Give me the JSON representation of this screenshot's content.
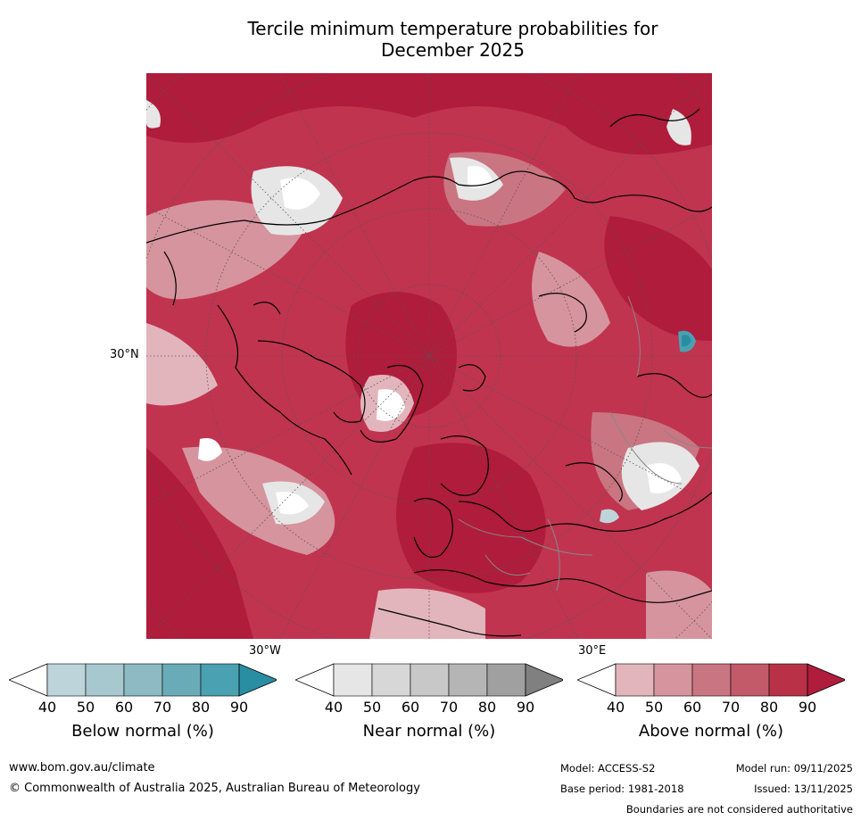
{
  "title": {
    "line1": "Tercile minimum temperature probabilities for",
    "line2": "December 2025"
  },
  "map": {
    "lat_label": "30°N",
    "lon_label_left": "30°W",
    "lon_label_right": "30°E"
  },
  "colorbars": [
    {
      "label": "Below normal (%)",
      "ticks": [
        "40",
        "50",
        "60",
        "70",
        "80",
        "90"
      ],
      "colors": [
        "#ffffff",
        "#bdd5da",
        "#a6c8ce",
        "#8dbac3",
        "#6aabb8",
        "#4aa1b1",
        "#2a8ea3"
      ]
    },
    {
      "label": "Near normal (%)",
      "ticks": [
        "40",
        "50",
        "60",
        "70",
        "80",
        "90"
      ],
      "colors": [
        "#ffffff",
        "#e6e6e6",
        "#d7d7d7",
        "#c8c8c8",
        "#b5b5b5",
        "#a0a0a0",
        "#808080"
      ]
    },
    {
      "label": "Above normal (%)",
      "ticks": [
        "40",
        "50",
        "60",
        "70",
        "80",
        "90"
      ],
      "colors": [
        "#ffffff",
        "#e2b5bc",
        "#d6949e",
        "#ca7582",
        "#c35a69",
        "#b93147",
        "#b01c3b"
      ]
    }
  ],
  "footer": {
    "website": "www.bom.gov.au/climate",
    "copyright": "© Commonwealth of Australia 2025, Australian Bureau of Meteorology",
    "model": "Model: ACCESS-S2",
    "model_run": "Model run: 09/11/2025",
    "base_period": "Base period: 1981-2018",
    "issued": "Issued: 13/11/2025",
    "disclaimer": "Boundaries are not considered authoritative"
  }
}
